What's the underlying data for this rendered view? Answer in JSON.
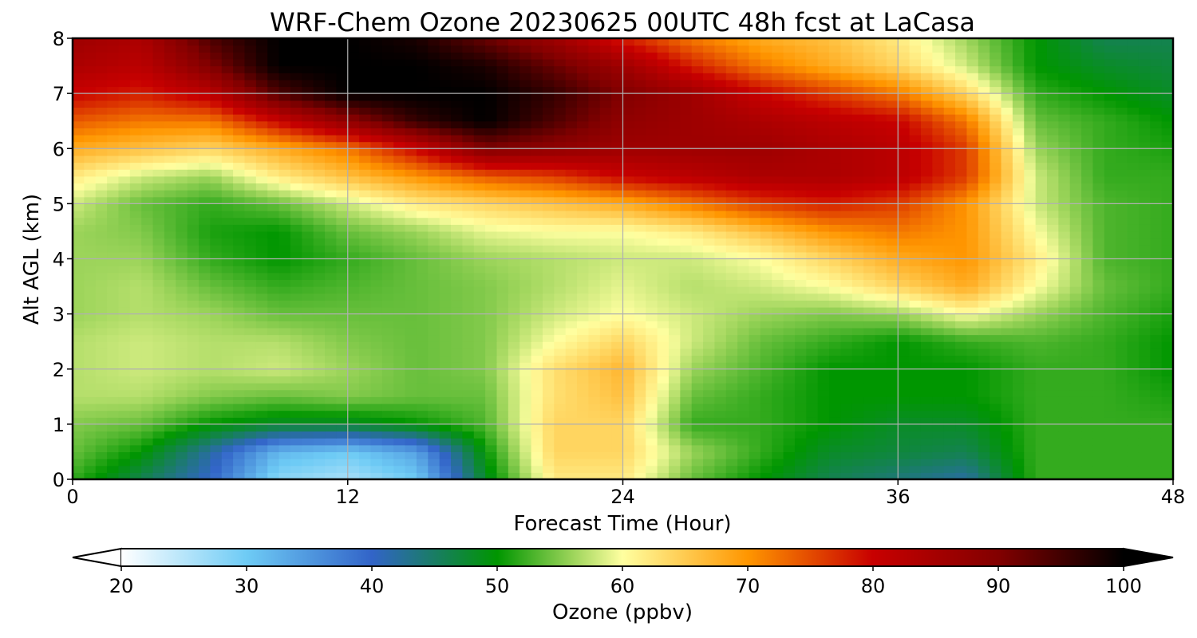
{
  "chart_data": {
    "type": "heatmap",
    "title": "WRF-Chem Ozone  20230625 00UTC 48h fcst at LaCasa",
    "xlabel": "Forecast Time (Hour)",
    "ylabel": "Alt AGL (km)",
    "xlim": [
      0,
      48
    ],
    "ylim": [
      0,
      8
    ],
    "x_ticks": [
      0,
      12,
      24,
      36,
      48
    ],
    "y_ticks": [
      0,
      1,
      2,
      3,
      4,
      5,
      6,
      7,
      8
    ],
    "grid": true,
    "colorbar": {
      "label": "Ozone  (ppbv)",
      "min": 20,
      "max": 100,
      "ticks": [
        20,
        30,
        40,
        50,
        60,
        70,
        80,
        90,
        100
      ],
      "extend": "both",
      "orientation": "horizontal",
      "placement": "bottom",
      "stops": [
        {
          "value": 20,
          "color": "#ffffff"
        },
        {
          "value": 30,
          "color": "#6ecbf5"
        },
        {
          "value": 40,
          "color": "#3264c8"
        },
        {
          "value": 50,
          "color": "#009600"
        },
        {
          "value": 56,
          "color": "#9cd45a"
        },
        {
          "value": 60,
          "color": "#ffffa0"
        },
        {
          "value": 70,
          "color": "#ff9600"
        },
        {
          "value": 80,
          "color": "#c80000"
        },
        {
          "value": 90,
          "color": "#820000"
        },
        {
          "value": 100,
          "color": "#000000"
        }
      ],
      "under_color": "#ffffff",
      "over_color": "#000000"
    },
    "x": [
      0,
      3,
      6,
      9,
      12,
      15,
      18,
      21,
      24,
      27,
      30,
      33,
      36,
      39,
      42,
      45,
      48
    ],
    "y": [
      0,
      0.5,
      1,
      1.5,
      2,
      2.5,
      3,
      3.5,
      4,
      4.5,
      5,
      5.5,
      6,
      6.5,
      7,
      7.5,
      8
    ],
    "values": [
      [
        52,
        46,
        40,
        28,
        26,
        30,
        48,
        62,
        62,
        54,
        50,
        46,
        44,
        42,
        52,
        52,
        52
      ],
      [
        54,
        50,
        42,
        32,
        30,
        34,
        50,
        64,
        64,
        56,
        52,
        48,
        47,
        46,
        52,
        52,
        52
      ],
      [
        55,
        54,
        50,
        48,
        48,
        50,
        53,
        64,
        64,
        52,
        52,
        50,
        48,
        48,
        52,
        52,
        52
      ],
      [
        57,
        57,
        55,
        54,
        55,
        54,
        54,
        63,
        66,
        54,
        52,
        50,
        50,
        50,
        52,
        52,
        51
      ],
      [
        57,
        58,
        57,
        58,
        56,
        54,
        55,
        63,
        67,
        56,
        53,
        50,
        50,
        50,
        52,
        52,
        50
      ],
      [
        57,
        58,
        57,
        57,
        55,
        54,
        55,
        60,
        64,
        58,
        54,
        52,
        50,
        52,
        53,
        52,
        50
      ],
      [
        56,
        57,
        56,
        54,
        54,
        54,
        55,
        58,
        60,
        58,
        56,
        55,
        56,
        60,
        56,
        53,
        51
      ],
      [
        56,
        57,
        54,
        52,
        53,
        54,
        55,
        57,
        59,
        57,
        58,
        60,
        64,
        68,
        60,
        54,
        52
      ],
      [
        56,
        56,
        52,
        50,
        52,
        54,
        56,
        57,
        58,
        58,
        60,
        64,
        68,
        70,
        62,
        53,
        52
      ],
      [
        56,
        55,
        51,
        50,
        54,
        56,
        59,
        60,
        60,
        62,
        66,
        70,
        72,
        70,
        60,
        53,
        52
      ],
      [
        58,
        54,
        52,
        54,
        58,
        62,
        64,
        66,
        68,
        72,
        76,
        78,
        76,
        70,
        58,
        53,
        52
      ],
      [
        62,
        58,
        56,
        62,
        66,
        70,
        74,
        76,
        80,
        82,
        84,
        84,
        82,
        76,
        58,
        52,
        52
      ],
      [
        68,
        66,
        64,
        68,
        72,
        80,
        90,
        88,
        86,
        86,
        86,
        84,
        82,
        76,
        56,
        52,
        51
      ],
      [
        74,
        72,
        72,
        80,
        88,
        96,
        100,
        94,
        88,
        86,
        84,
        82,
        80,
        72,
        54,
        52,
        50
      ],
      [
        80,
        78,
        82,
        94,
        100,
        100,
        100,
        96,
        90,
        86,
        80,
        76,
        72,
        64,
        52,
        50,
        48
      ],
      [
        84,
        82,
        90,
        100,
        100,
        100,
        98,
        92,
        86,
        78,
        72,
        68,
        64,
        58,
        50,
        48,
        47
      ],
      [
        86,
        84,
        94,
        100,
        100,
        98,
        92,
        86,
        78,
        72,
        68,
        66,
        62,
        56,
        50,
        46,
        46
      ]
    ]
  }
}
